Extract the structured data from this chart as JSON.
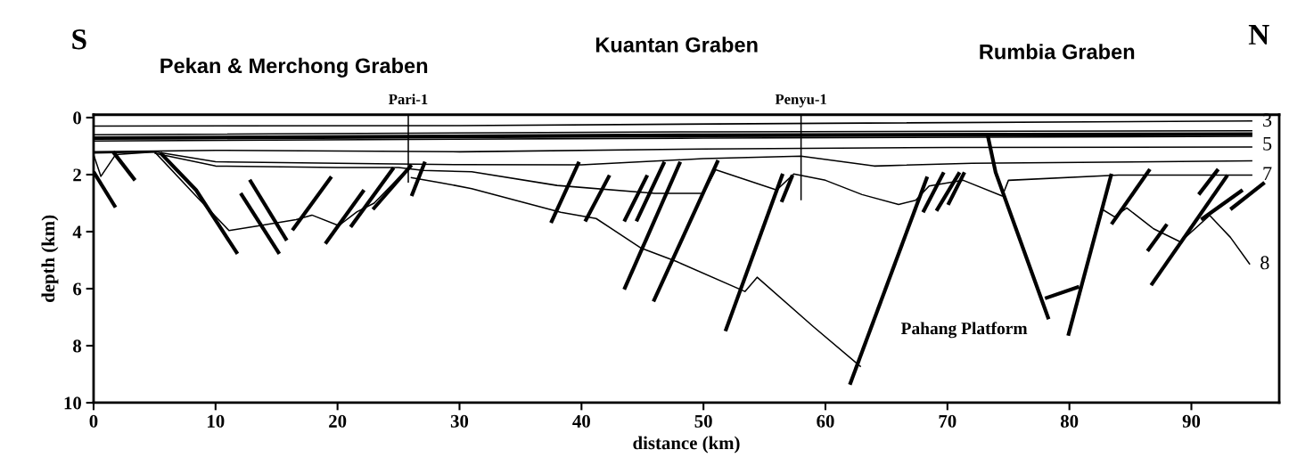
{
  "chart_data": {
    "type": "line",
    "xlabel": "distance (km)",
    "ylabel": "depth (km)",
    "xlim": [
      0,
      97.2
    ],
    "ylim": [
      10,
      -0.1
    ],
    "xticks": [
      0,
      10,
      20,
      30,
      40,
      50,
      60,
      70,
      80,
      90
    ],
    "yticks": [
      0,
      2,
      4,
      6,
      8,
      10
    ],
    "grid": false,
    "legend": false,
    "annotations": [
      "S",
      "Pekan & Merchong Graben",
      "Kuantan Graben",
      "Rumbia Graben",
      "N",
      "Pahang Platform"
    ],
    "series": [
      {
        "color": "#000000",
        "x": [
          0,
          30,
          60,
          95
        ],
        "values": [
          0.3,
          0.28,
          0.2,
          0.12
        ]
      },
      {
        "name": "3",
        "color": "#000000",
        "x": [
          0,
          50,
          95
        ],
        "values": [
          0.6,
          0.5,
          0.46
        ]
      },
      {
        "color": "#000000",
        "x": [
          0,
          50,
          95
        ],
        "values": [
          0.72,
          0.62,
          0.58
        ]
      },
      {
        "name": "5",
        "color": "#000000",
        "x": [
          0,
          50,
          95
        ],
        "values": [
          0.82,
          0.72,
          0.66
        ]
      },
      {
        "color": "#000000",
        "x": [
          0,
          10,
          30,
          50,
          70,
          95
        ],
        "values": [
          1.2,
          1.15,
          1.2,
          1.1,
          1.05,
          1.03
        ]
      },
      {
        "color": "#000000",
        "x": [
          0,
          5,
          10,
          20,
          30,
          40,
          50,
          58,
          64,
          72,
          95
        ],
        "values": [
          1.24,
          1.2,
          1.55,
          1.6,
          1.65,
          1.66,
          1.44,
          1.35,
          1.7,
          1.6,
          1.52
        ]
      },
      {
        "name": "7",
        "color": "#000000",
        "x": [
          5,
          10,
          20,
          25,
          27,
          31,
          38,
          46,
          50,
          51,
          56,
          57.4,
          60,
          63,
          66,
          67.4,
          68.5,
          71.3,
          74.5,
          75,
          84,
          95
        ],
        "values": [
          1.25,
          1.7,
          1.75,
          1.75,
          1.85,
          1.9,
          2.38,
          2.66,
          2.66,
          1.83,
          2.54,
          1.98,
          2.2,
          2.7,
          3.05,
          2.9,
          2.4,
          2.2,
          2.75,
          2.2,
          2.02,
          2.02
        ]
      },
      {
        "color": "#000000",
        "x": [
          0,
          0.6,
          1.8,
          5,
          8.4,
          11.1,
          13.5,
          16.6,
          17.9,
          20.1,
          21.6,
          23,
          25.5
        ],
        "values": [
          1.3,
          2.06,
          1.3,
          1.2,
          2.75,
          3.96,
          3.8,
          3.58,
          3.42,
          3.79,
          3.3,
          3.0,
          1.9
        ]
      },
      {
        "color": "#000000",
        "x": [
          26,
          28.4,
          31,
          38.3,
          41.2,
          44.9,
          47.8,
          53.4,
          54.4,
          59,
          62.9
        ],
        "values": [
          2.1,
          2.28,
          2.49,
          3.32,
          3.54,
          4.58,
          5.05,
          6.1,
          5.6,
          7.33,
          8.74
        ]
      },
      {
        "color": "#000000",
        "x": [
          78,
          80.8
        ],
        "values": [
          6.34,
          5.93
        ]
      },
      {
        "name": "8",
        "color": "#000000",
        "x": [
          82.7,
          83.7,
          84.7,
          86.9,
          89.1,
          91.5,
          93.2,
          94.8
        ],
        "values": [
          3.22,
          3.48,
          3.17,
          3.9,
          4.36,
          3.43,
          4.2,
          5.15
        ]
      },
      {
        "name": "Pari-1",
        "color": "#000000",
        "x": [
          25.8,
          25.8
        ],
        "values": [
          -0.1,
          2.28
        ]
      },
      {
        "name": "Penyu-1",
        "color": "#000000",
        "x": [
          58.0,
          58.0
        ],
        "values": [
          -0.1,
          2.9
        ]
      },
      {
        "color": "#000000",
        "x": [
          0,
          1.8
        ],
        "values": [
          1.9,
          3.15
        ]
      },
      {
        "color": "#000000",
        "x": [
          1.6,
          3.4
        ],
        "values": [
          1.2,
          2.2
        ]
      },
      {
        "color": "#000000",
        "x": [
          5.48,
          8.4,
          11.8
        ],
        "values": [
          1.24,
          2.54,
          4.78
        ]
      },
      {
        "color": "#000000",
        "x": [
          12.06,
          15.23
        ],
        "values": [
          2.65,
          4.78
        ]
      },
      {
        "color": "#000000",
        "x": [
          12.8,
          15.84
        ],
        "values": [
          2.18,
          4.31
        ]
      },
      {
        "color": "#000000",
        "x": [
          16.3,
          19.5
        ],
        "values": [
          3.95,
          2.07
        ]
      },
      {
        "color": "#000000",
        "x": [
          19.0,
          22.17
        ],
        "values": [
          4.42,
          2.54
        ]
      },
      {
        "color": "#000000",
        "x": [
          21.07,
          24.6
        ],
        "values": [
          3.84,
          1.76
        ]
      },
      {
        "color": "#000000",
        "x": [
          22.9,
          26.07
        ],
        "values": [
          3.22,
          1.66
        ]
      },
      {
        "color": "#000000",
        "x": [
          26.07,
          27.17
        ],
        "values": [
          2.75,
          1.55
        ]
      },
      {
        "color": "#000000",
        "x": [
          37.5,
          39.8
        ],
        "values": [
          3.69,
          1.55
        ]
      },
      {
        "color": "#000000",
        "x": [
          40.3,
          42.3
        ],
        "values": [
          3.64,
          2.02
        ]
      },
      {
        "color": "#000000",
        "x": [
          43.5,
          45.4
        ],
        "values": [
          3.64,
          2.02
        ]
      },
      {
        "color": "#000000",
        "x": [
          44.5,
          46.8
        ],
        "values": [
          3.64,
          1.55
        ]
      },
      {
        "color": "#000000",
        "x": [
          43.5,
          48.1
        ],
        "values": [
          6.03,
          1.55
        ]
      },
      {
        "color": "#000000",
        "x": [
          45.9,
          51.2
        ],
        "values": [
          6.45,
          1.5
        ]
      },
      {
        "color": "#000000",
        "x": [
          51.8,
          56.5
        ],
        "values": [
          7.49,
          1.97
        ]
      },
      {
        "color": "#000000",
        "x": [
          56.4,
          57.3
        ],
        "values": [
          2.96,
          2.02
        ]
      },
      {
        "color": "#000000",
        "x": [
          62.0,
          68.35
        ],
        "values": [
          9.37,
          2.07
        ]
      },
      {
        "color": "#000000",
        "x": [
          68.0,
          69.7
        ],
        "values": [
          3.32,
          1.92
        ]
      },
      {
        "color": "#000000",
        "x": [
          69.1,
          71.0
        ],
        "values": [
          3.27,
          1.92
        ]
      },
      {
        "color": "#000000",
        "x": [
          70.05,
          71.4
        ],
        "values": [
          3.06,
          1.92
        ]
      },
      {
        "color": "#000000",
        "x": [
          73.3,
          73.95,
          78.3
        ],
        "values": [
          0.62,
          1.92,
          7.07
        ]
      },
      {
        "color": "#000000",
        "x": [
          79.9,
          83.45
        ],
        "values": [
          7.65,
          1.97
        ]
      },
      {
        "color": "#000000",
        "x": [
          83.45,
          86.6
        ],
        "values": [
          3.74,
          1.81
        ]
      },
      {
        "color": "#000000",
        "x": [
          86.4,
          88.0
        ],
        "values": [
          4.68,
          3.74
        ]
      },
      {
        "color": "#000000",
        "x": [
          90.6,
          92.2
        ],
        "values": [
          2.7,
          1.81
        ]
      },
      {
        "color": "#000000",
        "x": [
          86.7,
          92.96
        ],
        "values": [
          5.88,
          2.02
        ]
      },
      {
        "color": "#000000",
        "x": [
          90.8,
          94.2
        ],
        "values": [
          3.58,
          2.54
        ]
      },
      {
        "color": "#000000",
        "x": [
          93.2,
          96.0
        ],
        "values": [
          3.22,
          2.28
        ]
      }
    ]
  }
}
